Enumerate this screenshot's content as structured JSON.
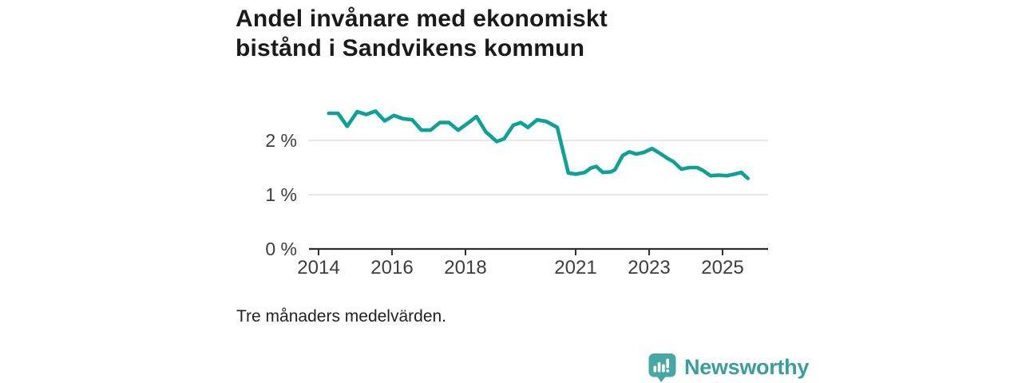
{
  "title": {
    "line1": "Andel invånare med ekonomiskt",
    "line2": "bistånd i Sandvikens kommun"
  },
  "footnote": "Tre månaders medelvärden.",
  "branding": {
    "name": "Newsworthy",
    "icon": "newsworthy-bar-chart-bubble-icon",
    "icon_color": "#47a8a3",
    "text_color": "#3a9e9a"
  },
  "colors": {
    "line": "#0da295",
    "grid": "#e2e2e2",
    "axis": "#2f2f2f",
    "tick_label": "#3d3d3d",
    "title_text": "#1a1a1a"
  },
  "chart_data": {
    "type": "line",
    "title": "Andel invånare med ekonomiskt bistånd i Sandvikens kommun",
    "note": "Tre månaders medelvärden.",
    "legend": "none",
    "grid": "horizontal",
    "x_axis": {
      "ticks": [
        2014,
        2016,
        2018,
        2021,
        2023,
        2025
      ],
      "labels": [
        "2014",
        "2016",
        "2018",
        "2021",
        "2023",
        "2025"
      ],
      "range": [
        2013.74,
        2026.24
      ]
    },
    "y_axis": {
      "ticks": [
        0,
        1,
        2
      ],
      "labels": [
        "0 %",
        "1 %",
        "2 %"
      ],
      "unit": "%",
      "range": [
        0,
        2.65
      ]
    },
    "series": [
      {
        "name": "Andel invånare med ekonomiskt bistånd",
        "color": "#0da295",
        "x": [
          2014.28,
          2014.53,
          2014.78,
          2015.05,
          2015.3,
          2015.55,
          2015.8,
          2016.05,
          2016.3,
          2016.55,
          2016.8,
          2017.05,
          2017.3,
          2017.55,
          2017.8,
          2018.05,
          2018.3,
          2018.55,
          2018.85,
          2019.05,
          2019.3,
          2019.5,
          2019.7,
          2019.95,
          2020.2,
          2020.5,
          2020.8,
          2021.0,
          2021.25,
          2021.41,
          2021.56,
          2021.74,
          2021.96,
          2022.07,
          2022.28,
          2022.46,
          2022.65,
          2022.86,
          2023.08,
          2023.3,
          2023.52,
          2023.66,
          2023.88,
          2024.1,
          2024.31,
          2024.46,
          2024.67,
          2024.89,
          2025.11,
          2025.33,
          2025.51,
          2025.69
        ],
        "y": [
          2.5,
          2.5,
          2.26,
          2.53,
          2.48,
          2.54,
          2.36,
          2.46,
          2.4,
          2.38,
          2.19,
          2.19,
          2.33,
          2.33,
          2.19,
          2.31,
          2.44,
          2.16,
          1.98,
          2.03,
          2.28,
          2.33,
          2.24,
          2.38,
          2.35,
          2.24,
          1.4,
          1.38,
          1.41,
          1.49,
          1.52,
          1.41,
          1.42,
          1.46,
          1.72,
          1.79,
          1.75,
          1.78,
          1.85,
          1.76,
          1.66,
          1.61,
          1.47,
          1.5,
          1.5,
          1.45,
          1.35,
          1.36,
          1.35,
          1.38,
          1.41,
          1.3
        ]
      }
    ]
  }
}
